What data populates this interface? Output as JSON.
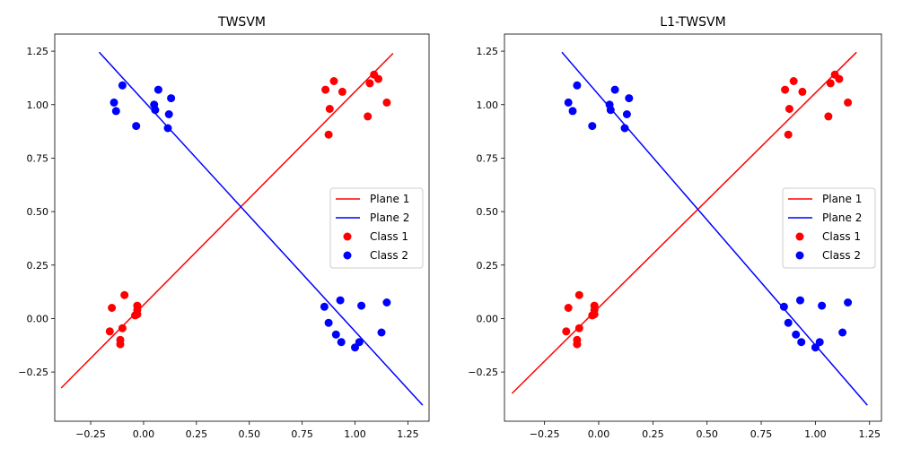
{
  "chart_data": [
    {
      "type": "scatter",
      "title": "TWSVM",
      "xlabel": "",
      "ylabel": "",
      "xlim": [
        -0.42,
        1.35
      ],
      "ylim": [
        -0.48,
        1.33
      ],
      "xticks": [
        -0.25,
        0.0,
        0.25,
        0.5,
        0.75,
        1.0,
        1.25
      ],
      "xtick_labels": [
        "−0.25",
        "0.00",
        "0.25",
        "0.50",
        "0.75",
        "1.00",
        "1.25"
      ],
      "yticks": [
        -0.25,
        0.0,
        0.25,
        0.5,
        0.75,
        1.0,
        1.25
      ],
      "ytick_labels": [
        "−0.25",
        "0.00",
        "0.25",
        "0.50",
        "0.75",
        "1.00",
        "1.25"
      ],
      "grid": false,
      "legend": {
        "placement": "center-right",
        "entries": [
          {
            "label": "Plane 1",
            "kind": "line",
            "color": "#ff0000"
          },
          {
            "label": "Plane 2",
            "kind": "line",
            "color": "#0000ff"
          },
          {
            "label": "Class 1",
            "kind": "marker",
            "color": "#ff0000"
          },
          {
            "label": "Class 2",
            "kind": "marker",
            "color": "#0000ff"
          }
        ]
      },
      "lines": [
        {
          "name": "Plane 1",
          "color": "#ff0000",
          "x": [
            -0.39,
            1.18
          ],
          "y": [
            -0.325,
            1.24
          ]
        },
        {
          "name": "Plane 2",
          "color": "#0000ff",
          "x": [
            -0.21,
            1.32
          ],
          "y": [
            1.245,
            -0.405
          ]
        }
      ],
      "series": [
        {
          "name": "Class 1",
          "color": "#ff0000",
          "points": [
            [
              -0.15,
              0.05
            ],
            [
              -0.09,
              0.11
            ],
            [
              -0.03,
              0.06
            ],
            [
              -0.03,
              0.04
            ],
            [
              -0.03,
              0.02
            ],
            [
              -0.04,
              0.015
            ],
            [
              -0.1,
              -0.045
            ],
            [
              -0.16,
              -0.06
            ],
            [
              -0.11,
              -0.1
            ],
            [
              -0.11,
              -0.12
            ],
            [
              0.86,
              1.07
            ],
            [
              0.9,
              1.11
            ],
            [
              0.94,
              1.06
            ],
            [
              0.88,
              0.98
            ],
            [
              0.875,
              0.86
            ],
            [
              1.09,
              1.14
            ],
            [
              1.11,
              1.12
            ],
            [
              1.07,
              1.1
            ],
            [
              1.15,
              1.01
            ],
            [
              1.06,
              0.945
            ]
          ]
        },
        {
          "name": "Class 2",
          "color": "#0000ff",
          "points": [
            [
              -0.1,
              1.09
            ],
            [
              -0.14,
              1.01
            ],
            [
              -0.13,
              0.97
            ],
            [
              -0.035,
              0.9
            ],
            [
              0.05,
              1.0
            ],
            [
              0.055,
              0.975
            ],
            [
              0.07,
              1.07
            ],
            [
              0.13,
              1.03
            ],
            [
              0.12,
              0.955
            ],
            [
              0.115,
              0.89
            ],
            [
              0.855,
              0.055
            ],
            [
              0.93,
              0.085
            ],
            [
              1.03,
              0.06
            ],
            [
              1.15,
              0.075
            ],
            [
              0.875,
              -0.02
            ],
            [
              0.91,
              -0.075
            ],
            [
              0.935,
              -0.11
            ],
            [
              1.0,
              -0.135
            ],
            [
              1.02,
              -0.11
            ],
            [
              1.125,
              -0.065
            ]
          ]
        }
      ]
    },
    {
      "type": "scatter",
      "title": "L1-TWSVM",
      "xlabel": "",
      "ylabel": "",
      "xlim": [
        -0.435,
        1.305
      ],
      "ylim": [
        -0.48,
        1.33
      ],
      "xticks": [
        -0.25,
        0.0,
        0.25,
        0.5,
        0.75,
        1.0,
        1.25
      ],
      "xtick_labels": [
        "−0.25",
        "0.00",
        "0.25",
        "0.50",
        "0.75",
        "1.00",
        "1.25"
      ],
      "yticks": [
        -0.25,
        0.0,
        0.25,
        0.5,
        0.75,
        1.0,
        1.25
      ],
      "ytick_labels": [
        "−0.25",
        "0.00",
        "0.25",
        "0.50",
        "0.75",
        "1.00",
        "1.25"
      ],
      "grid": false,
      "legend": {
        "placement": "center-right",
        "entries": [
          {
            "label": "Plane 1",
            "kind": "line",
            "color": "#ff0000"
          },
          {
            "label": "Plane 2",
            "kind": "line",
            "color": "#0000ff"
          },
          {
            "label": "Class 1",
            "kind": "marker",
            "color": "#ff0000"
          },
          {
            "label": "Class 2",
            "kind": "marker",
            "color": "#0000ff"
          }
        ]
      },
      "lines": [
        {
          "name": "Plane 1",
          "color": "#ff0000",
          "x": [
            -0.4,
            1.19
          ],
          "y": [
            -0.35,
            1.245
          ]
        },
        {
          "name": "Plane 2",
          "color": "#0000ff",
          "x": [
            -0.17,
            1.24
          ],
          "y": [
            1.245,
            -0.405
          ]
        }
      ],
      "series": [
        {
          "name": "Class 1",
          "color": "#ff0000",
          "points": [
            [
              -0.14,
              0.05
            ],
            [
              -0.09,
              0.11
            ],
            [
              -0.02,
              0.06
            ],
            [
              -0.02,
              0.04
            ],
            [
              -0.02,
              0.02
            ],
            [
              -0.03,
              0.015
            ],
            [
              -0.09,
              -0.045
            ],
            [
              -0.15,
              -0.06
            ],
            [
              -0.1,
              -0.1
            ],
            [
              -0.1,
              -0.12
            ],
            [
              0.86,
              1.07
            ],
            [
              0.9,
              1.11
            ],
            [
              0.94,
              1.06
            ],
            [
              0.88,
              0.98
            ],
            [
              0.875,
              0.86
            ],
            [
              1.09,
              1.14
            ],
            [
              1.11,
              1.12
            ],
            [
              1.07,
              1.1
            ],
            [
              1.15,
              1.01
            ],
            [
              1.06,
              0.945
            ]
          ]
        },
        {
          "name": "Class 2",
          "color": "#0000ff",
          "points": [
            [
              -0.1,
              1.09
            ],
            [
              -0.14,
              1.01
            ],
            [
              -0.12,
              0.97
            ],
            [
              -0.03,
              0.9
            ],
            [
              0.05,
              1.0
            ],
            [
              0.055,
              0.975
            ],
            [
              0.075,
              1.07
            ],
            [
              0.14,
              1.03
            ],
            [
              0.13,
              0.955
            ],
            [
              0.12,
              0.89
            ],
            [
              0.855,
              0.055
            ],
            [
              0.93,
              0.085
            ],
            [
              1.03,
              0.06
            ],
            [
              1.15,
              0.075
            ],
            [
              0.875,
              -0.02
            ],
            [
              0.91,
              -0.075
            ],
            [
              0.935,
              -0.11
            ],
            [
              1.0,
              -0.135
            ],
            [
              1.02,
              -0.11
            ],
            [
              1.125,
              -0.065
            ]
          ]
        }
      ]
    }
  ]
}
